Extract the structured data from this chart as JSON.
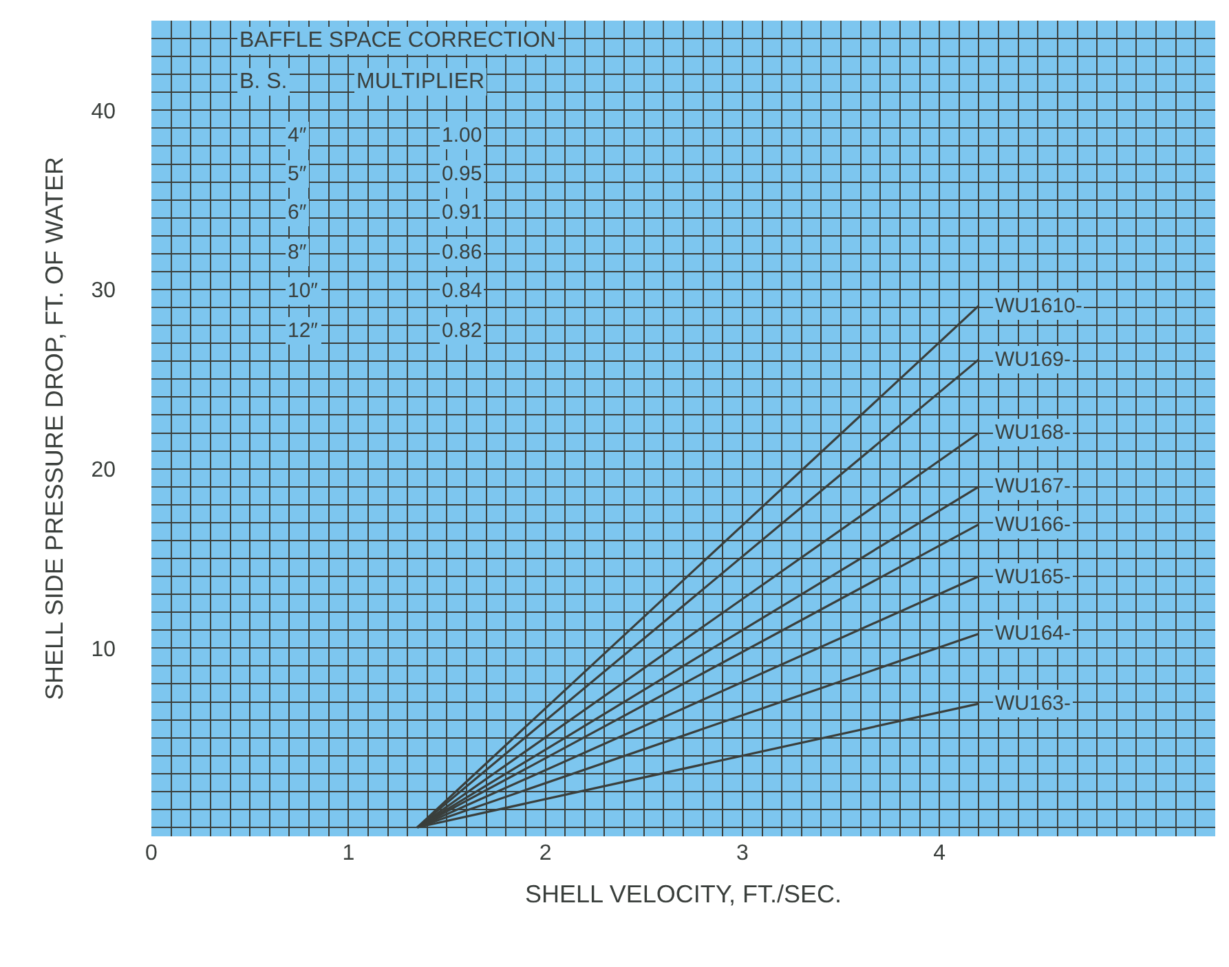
{
  "chart_data": {
    "type": "line",
    "xlabel": "SHELL VELOCITY, FT./SEC.",
    "ylabel": "SHELL SIDE PRESSURE DROP, FT. OF WATER",
    "x": [
      1.35,
      4.2
    ],
    "series": [
      {
        "name": "WU1610-",
        "color": "#3a3f3c",
        "values": [
          0,
          29.1
        ]
      },
      {
        "name": "WU169-",
        "color": "#3a3f3c",
        "values": [
          0,
          26.1
        ]
      },
      {
        "name": "WU168-",
        "color": "#3a3f3c",
        "values": [
          0,
          22.0
        ]
      },
      {
        "name": "WU167-",
        "color": "#3a3f3c",
        "values": [
          0,
          19.0
        ]
      },
      {
        "name": "WU166-",
        "color": "#3a3f3c",
        "values": [
          0,
          16.9
        ]
      },
      {
        "name": "WU165-",
        "color": "#3a3f3c",
        "values": [
          0,
          14.0
        ]
      },
      {
        "name": "WU164-",
        "color": "#3a3f3c",
        "values": [
          0,
          10.8
        ]
      },
      {
        "name": "WU163-",
        "color": "#3a3f3c",
        "values": [
          0,
          6.9
        ]
      }
    ],
    "annotations": [
      "BAFFLE SPACE CORRECTION",
      "B. S.",
      "MULTIPLIER",
      "4″",
      "1.00",
      "5″",
      "0.95",
      "6″",
      "0.91",
      "8″",
      "0.86",
      "10″",
      "0.84",
      "12″",
      "0.82"
    ],
    "xlim": [
      0,
      5.4
    ],
    "ylim": [
      -0.5,
      45
    ],
    "xticks": [
      0,
      1,
      2,
      3,
      4
    ],
    "yticks": [
      10,
      20,
      30,
      40
    ],
    "grid": true,
    "legend": false,
    "marker": "none",
    "line_style": "solid"
  }
}
